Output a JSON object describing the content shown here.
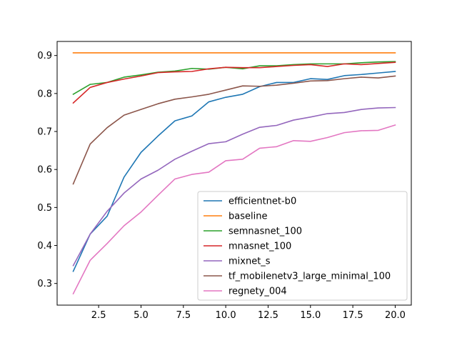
{
  "chart_data": {
    "type": "line",
    "title": "",
    "xlabel": "",
    "ylabel": "",
    "xlim": [
      0.05,
      20.95
    ],
    "ylim": [
      0.243,
      0.937
    ],
    "xticks": [
      2.5,
      5.0,
      7.5,
      10.0,
      12.5,
      15.0,
      17.5,
      20.0
    ],
    "xtick_labels": [
      "2.5",
      "5.0",
      "7.5",
      "10.0",
      "12.5",
      "15.0",
      "17.5",
      "20.0"
    ],
    "yticks": [
      0.3,
      0.4,
      0.5,
      0.6,
      0.7,
      0.8,
      0.9
    ],
    "ytick_labels": [
      "0.3",
      "0.4",
      "0.5",
      "0.6",
      "0.7",
      "0.8",
      "0.9"
    ],
    "grid": false,
    "legend_position": "lower-right",
    "x": [
      1,
      2,
      3,
      4,
      5,
      6,
      7,
      8,
      9,
      10,
      11,
      12,
      13,
      14,
      15,
      16,
      17,
      18,
      19,
      20
    ],
    "series": [
      {
        "name": "efficientnet-b0",
        "color": "#1f77b4",
        "values": [
          0.332,
          0.43,
          0.477,
          0.58,
          0.645,
          0.688,
          0.728,
          0.741,
          0.778,
          0.79,
          0.798,
          0.818,
          0.829,
          0.829,
          0.839,
          0.837,
          0.847,
          0.85,
          0.854,
          0.858
        ]
      },
      {
        "name": "baseline",
        "color": "#ff7f0e",
        "values": [
          0.907,
          0.907,
          0.907,
          0.907,
          0.907,
          0.907,
          0.907,
          0.907,
          0.907,
          0.907,
          0.907,
          0.907,
          0.907,
          0.907,
          0.907,
          0.907,
          0.907,
          0.907,
          0.907,
          0.907
        ]
      },
      {
        "name": "semnasnet_100",
        "color": "#2ca02c",
        "values": [
          0.798,
          0.824,
          0.829,
          0.843,
          0.849,
          0.856,
          0.859,
          0.866,
          0.864,
          0.869,
          0.865,
          0.873,
          0.873,
          0.876,
          0.878,
          0.878,
          0.878,
          0.881,
          0.883,
          0.884
        ]
      },
      {
        "name": "mnasnet_100",
        "color": "#d62728",
        "values": [
          0.775,
          0.816,
          0.829,
          0.838,
          0.846,
          0.855,
          0.857,
          0.858,
          0.865,
          0.869,
          0.868,
          0.868,
          0.871,
          0.874,
          0.876,
          0.871,
          0.878,
          0.876,
          0.879,
          0.882
        ]
      },
      {
        "name": "mixnet_s",
        "color": "#9467bd",
        "values": [
          0.347,
          0.43,
          0.49,
          0.538,
          0.575,
          0.598,
          0.627,
          0.648,
          0.668,
          0.673,
          0.693,
          0.711,
          0.716,
          0.73,
          0.738,
          0.747,
          0.75,
          0.758,
          0.762,
          0.763
        ]
      },
      {
        "name": "tf_mobilenetv3_large_minimal_100",
        "color": "#8c564b",
        "values": [
          0.562,
          0.667,
          0.71,
          0.743,
          0.758,
          0.773,
          0.785,
          0.791,
          0.798,
          0.809,
          0.82,
          0.819,
          0.822,
          0.827,
          0.833,
          0.834,
          0.839,
          0.843,
          0.841,
          0.846
        ]
      },
      {
        "name": "regnety_004",
        "color": "#e377c2",
        "values": [
          0.273,
          0.361,
          0.405,
          0.452,
          0.488,
          0.532,
          0.575,
          0.587,
          0.593,
          0.623,
          0.627,
          0.656,
          0.66,
          0.676,
          0.674,
          0.684,
          0.697,
          0.702,
          0.703,
          0.717
        ]
      }
    ]
  }
}
